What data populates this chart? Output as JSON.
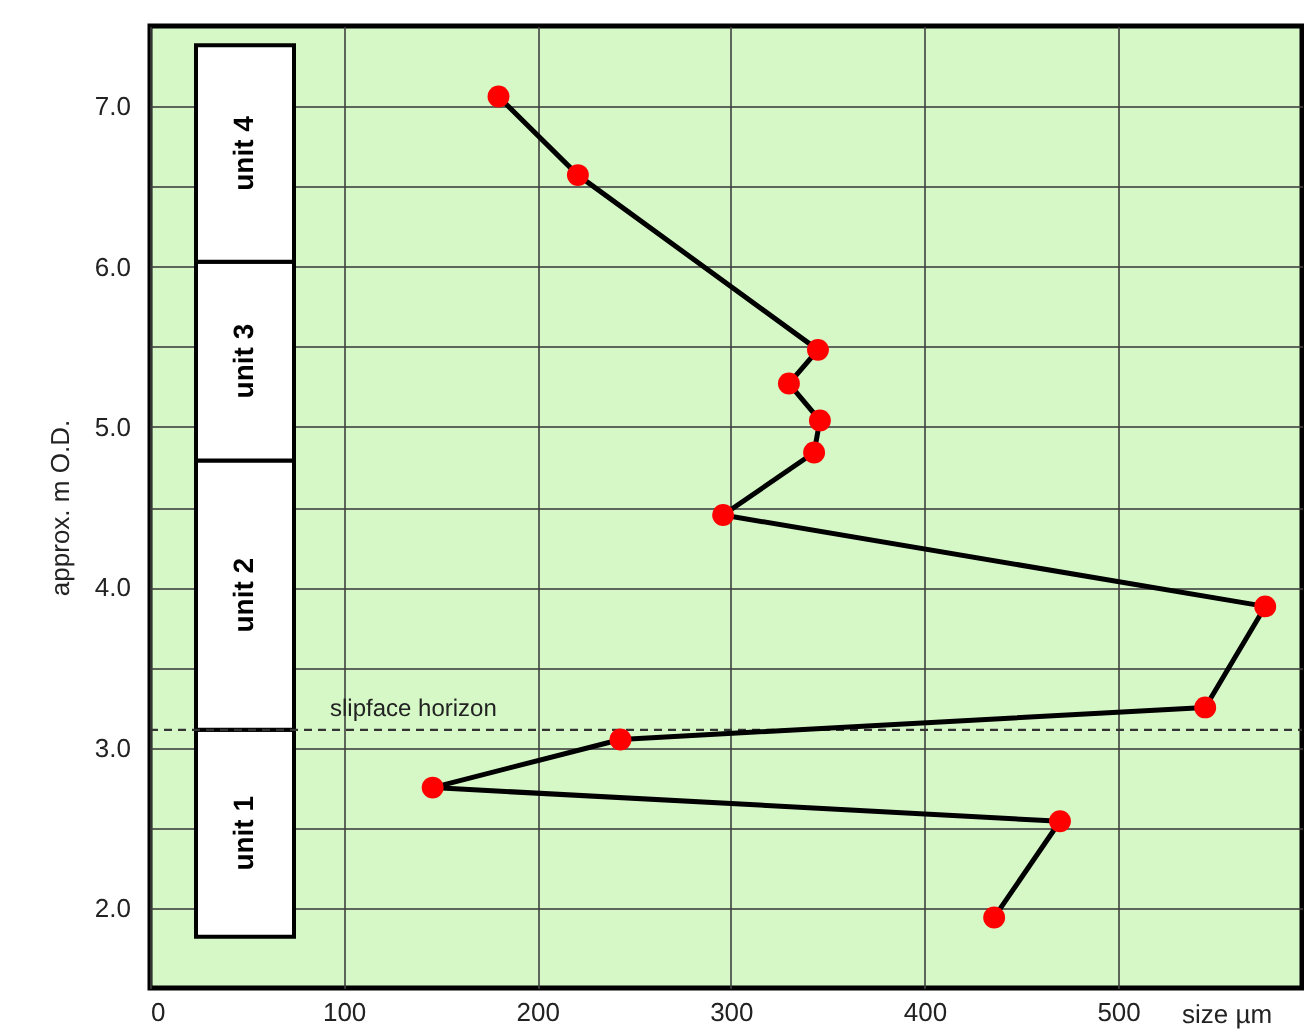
{
  "chart_data": {
    "type": "line",
    "xlabel": "size µm",
    "ylabel": "approx. m O.D.",
    "x": [
      180,
      221,
      345,
      330,
      346,
      343,
      296,
      576,
      545,
      243,
      146,
      470,
      436
    ],
    "series": [
      {
        "color": "#ff0000",
        "values": [
          7.06,
          6.57,
          5.48,
          5.27,
          5.04,
          4.84,
          4.45,
          3.88,
          3.25,
          3.05,
          2.75,
          2.54,
          1.94
        ]
      }
    ],
    "xlim": [
      0,
      595
    ],
    "ylim": [
      1.5,
      7.5
    ],
    "xticks": [
      0,
      100,
      200,
      300,
      400,
      500
    ],
    "yticks": [
      {
        "value": 2,
        "label": "2.0"
      },
      {
        "value": 2.5,
        "label": null
      },
      {
        "value": 3,
        "label": "3.0"
      },
      {
        "value": 3.5,
        "label": null
      },
      {
        "value": 4,
        "label": "4.0"
      },
      {
        "value": 4.5,
        "label": null
      },
      {
        "value": 5,
        "label": "5.0"
      },
      {
        "value": 5.5,
        "label": null
      },
      {
        "value": 6,
        "label": "6.0"
      },
      {
        "value": 6.5,
        "label": null
      },
      {
        "value": 7,
        "label": "7.0"
      }
    ],
    "grid": true,
    "marker": "circle",
    "line_style": "solid",
    "ref_lines": [
      {
        "axis": "y",
        "value": 3.11,
        "label": "slipface horizon",
        "line_style": "dashed"
      }
    ],
    "bands": [
      {
        "axis": "y",
        "from": 1.82,
        "to": 3.11,
        "label": "unit 1",
        "color": "#ffffff"
      },
      {
        "axis": "y",
        "from": 3.11,
        "to": 4.79,
        "label": "unit 2",
        "color": "#ffffff"
      },
      {
        "axis": "y",
        "from": 4.79,
        "to": 6.03,
        "label": "unit 3",
        "color": "#ffffff"
      },
      {
        "axis": "y",
        "from": 6.03,
        "to": 7.38,
        "label": "unit 4",
        "color": "#ffffff"
      }
    ]
  }
}
